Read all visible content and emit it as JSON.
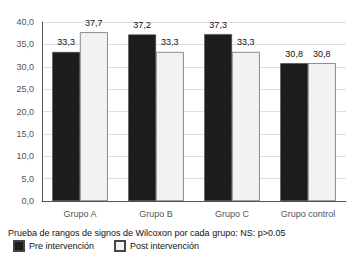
{
  "chart_data": {
    "type": "bar",
    "categories": [
      "Grupo A",
      "Grupo B",
      "Grupo C",
      "Grupo control"
    ],
    "series": [
      {
        "name": "Pre intervención",
        "color": "#1c1c1c",
        "values": [
          33.3,
          37.2,
          37.3,
          30.8
        ],
        "value_labels": [
          "33,3",
          "37,2",
          "37,3",
          "30,8"
        ]
      },
      {
        "name": "Post intervención",
        "color": "#f2f2f2",
        "values": [
          37.7,
          33.3,
          33.3,
          30.8
        ],
        "value_labels": [
          "37,7",
          "33,3",
          "33,3",
          "30,8"
        ]
      }
    ],
    "ylim": [
      0,
      40
    ],
    "yticks": [
      {
        "value": 0,
        "label": "0,0"
      },
      {
        "value": 5,
        "label": "5,0"
      },
      {
        "value": 10,
        "label": "10,0"
      },
      {
        "value": 15,
        "label": "15,0"
      },
      {
        "value": 20,
        "label": "20,0"
      },
      {
        "value": 25,
        "label": "25,0"
      },
      {
        "value": 30,
        "label": "30,0"
      },
      {
        "value": 35,
        "label": "35,0"
      },
      {
        "value": 40,
        "label": "40,0"
      }
    ],
    "grid": true,
    "data_labels": true,
    "legend": "lower left",
    "annotations": [
      "Prueba de rangos de signos de Wilcoxon por cada grupo: NS: p>0.05"
    ]
  }
}
